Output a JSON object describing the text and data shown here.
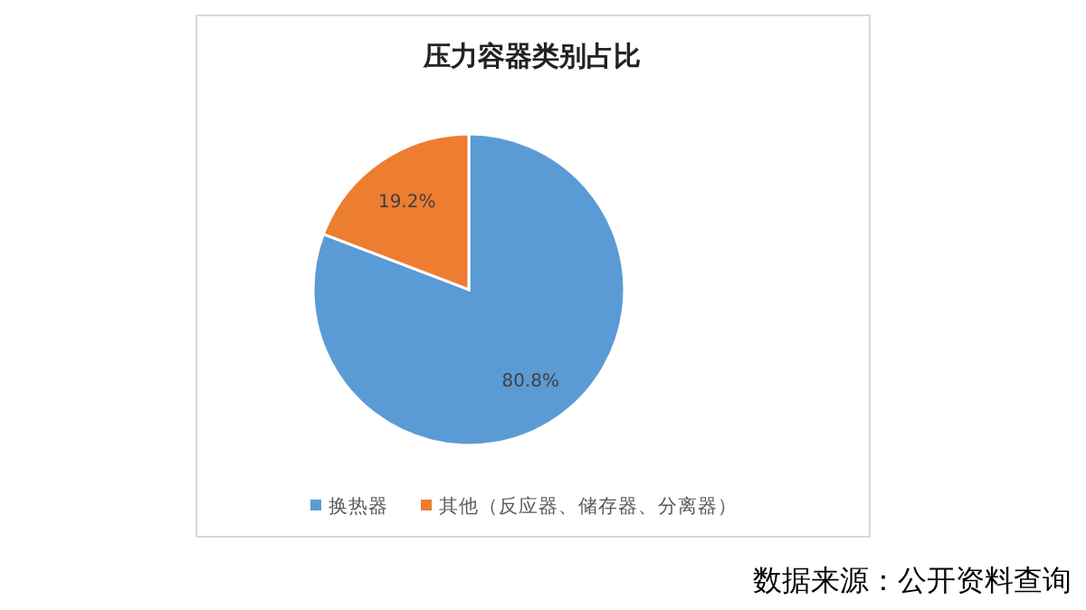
{
  "chart_data": {
    "type": "pie",
    "title": "压力容器类别占比",
    "categories": [
      "换热器",
      "其他（反应器、储存器、分离器）"
    ],
    "values": [
      80.8,
      19.2
    ],
    "colors": [
      "#5b9bd5",
      "#ed7d31"
    ],
    "value_labels": [
      "80.8%",
      "19.2%"
    ],
    "legend": "bottom",
    "annotations": [
      "数据来源：公开资料查询"
    ]
  }
}
